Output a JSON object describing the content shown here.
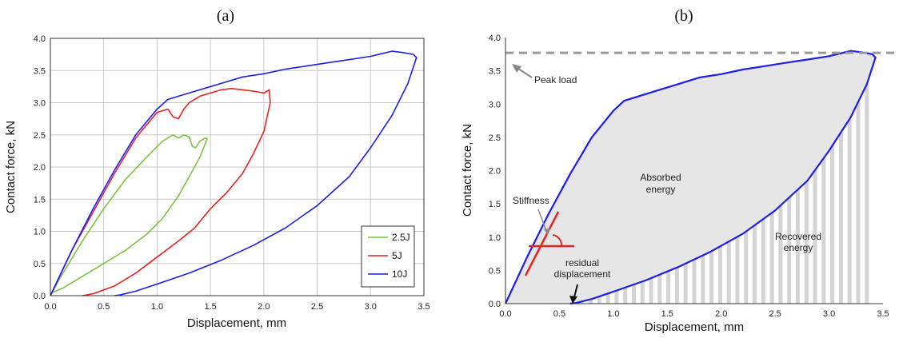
{
  "chart_data": [
    {
      "panel": "(a)",
      "type": "line",
      "xlabel": "Displacement, mm",
      "ylabel": "Contact force, kN",
      "xlim": [
        0,
        3.5
      ],
      "ylim": [
        0,
        4.0
      ],
      "xticks": [
        "0.0",
        "0.5",
        "1.0",
        "1.5",
        "2.0",
        "2.5",
        "3.0",
        "3.5"
      ],
      "yticks": [
        "0.0",
        "0.5",
        "1.0",
        "1.5",
        "2.0",
        "2.5",
        "3.0",
        "3.5",
        "4.0"
      ],
      "grid": true,
      "legend": "bottom-right",
      "series": [
        {
          "name": "2.5J",
          "color": "#7dc242",
          "x": [
            0.0,
            0.1,
            0.3,
            0.5,
            0.7,
            0.9,
            1.05,
            1.15,
            1.2,
            1.25,
            1.3,
            1.33,
            1.36,
            1.4,
            1.45,
            1.47,
            1.4,
            1.3,
            1.2,
            1.05,
            0.9,
            0.7,
            0.5,
            0.3,
            0.12,
            0.02
          ],
          "y": [
            0.0,
            0.3,
            0.85,
            1.35,
            1.8,
            2.15,
            2.4,
            2.5,
            2.45,
            2.5,
            2.47,
            2.32,
            2.3,
            2.4,
            2.45,
            2.44,
            2.15,
            1.85,
            1.55,
            1.2,
            0.95,
            0.7,
            0.5,
            0.3,
            0.12,
            0.05
          ]
        },
        {
          "name": "5J",
          "color": "#e52421",
          "x": [
            0.0,
            0.2,
            0.4,
            0.6,
            0.8,
            1.0,
            1.1,
            1.15,
            1.2,
            1.25,
            1.3,
            1.4,
            1.5,
            1.6,
            1.7,
            1.8,
            1.9,
            2.0,
            2.05,
            2.06,
            2.0,
            1.9,
            1.8,
            1.65,
            1.5,
            1.35,
            1.2,
            1.0,
            0.8,
            0.6,
            0.4,
            0.3
          ],
          "y": [
            0.0,
            0.7,
            1.3,
            1.9,
            2.45,
            2.85,
            2.9,
            2.78,
            2.75,
            2.9,
            3.0,
            3.1,
            3.15,
            3.2,
            3.22,
            3.2,
            3.18,
            3.15,
            3.2,
            3.0,
            2.55,
            2.2,
            1.9,
            1.6,
            1.35,
            1.05,
            0.85,
            0.6,
            0.35,
            0.15,
            0.03,
            0.0
          ]
        },
        {
          "name": "10J",
          "color": "#1d1df0",
          "x": [
            0.0,
            0.2,
            0.4,
            0.6,
            0.8,
            1.0,
            1.1,
            1.2,
            1.4,
            1.6,
            1.8,
            2.0,
            2.2,
            2.4,
            2.6,
            2.8,
            3.0,
            3.1,
            3.2,
            3.3,
            3.4,
            3.43,
            3.35,
            3.2,
            3.0,
            2.8,
            2.5,
            2.2,
            1.9,
            1.6,
            1.3,
            1.0,
            0.8,
            0.65,
            0.6
          ],
          "y": [
            0.0,
            0.7,
            1.35,
            1.95,
            2.5,
            2.9,
            3.05,
            3.1,
            3.2,
            3.3,
            3.4,
            3.45,
            3.52,
            3.57,
            3.62,
            3.67,
            3.72,
            3.76,
            3.8,
            3.78,
            3.75,
            3.7,
            3.3,
            2.8,
            2.3,
            1.85,
            1.4,
            1.05,
            0.78,
            0.55,
            0.35,
            0.18,
            0.07,
            0.01,
            0.0
          ]
        }
      ]
    },
    {
      "panel": "(b)",
      "type": "area",
      "xlabel": "Displacement, mm",
      "ylabel": "Contact force, kN",
      "xlim": [
        0,
        3.5
      ],
      "ylim": [
        0,
        4.0
      ],
      "xticks": [
        "0.0",
        "0.5",
        "1.0",
        "1.5",
        "2.0",
        "2.5",
        "3.0",
        "3.5"
      ],
      "yticks": [
        "0.0",
        "0.5",
        "1.0",
        "1.5",
        "2.0",
        "2.5",
        "3.0",
        "3.5",
        "4.0"
      ],
      "grid": false,
      "peak_load": 3.77,
      "series": [
        {
          "name": "",
          "color": "#1d1df0",
          "x": [
            0.0,
            0.2,
            0.4,
            0.6,
            0.8,
            1.0,
            1.1,
            1.2,
            1.4,
            1.6,
            1.8,
            2.0,
            2.2,
            2.4,
            2.6,
            2.8,
            3.0,
            3.1,
            3.2,
            3.3,
            3.4,
            3.43,
            3.35,
            3.2,
            3.0,
            2.8,
            2.5,
            2.2,
            1.9,
            1.6,
            1.3,
            1.0,
            0.8,
            0.65,
            0.6
          ],
          "y": [
            0.0,
            0.7,
            1.35,
            1.95,
            2.5,
            2.9,
            3.05,
            3.1,
            3.2,
            3.3,
            3.4,
            3.45,
            3.52,
            3.57,
            3.62,
            3.67,
            3.72,
            3.76,
            3.8,
            3.78,
            3.75,
            3.7,
            3.3,
            2.8,
            2.3,
            1.85,
            1.4,
            1.05,
            0.78,
            0.55,
            0.35,
            0.18,
            0.07,
            0.01,
            0.0
          ]
        }
      ],
      "annotations": {
        "peak_load": "Peak load",
        "stiffness": "Stiffness",
        "absorbed_line1": "Absorbed",
        "absorbed_line2": "energy",
        "recovered_line1": "Recovered",
        "recovered_line2": "energy",
        "residual_line1": "residual",
        "residual_line2": "displacement"
      }
    }
  ]
}
